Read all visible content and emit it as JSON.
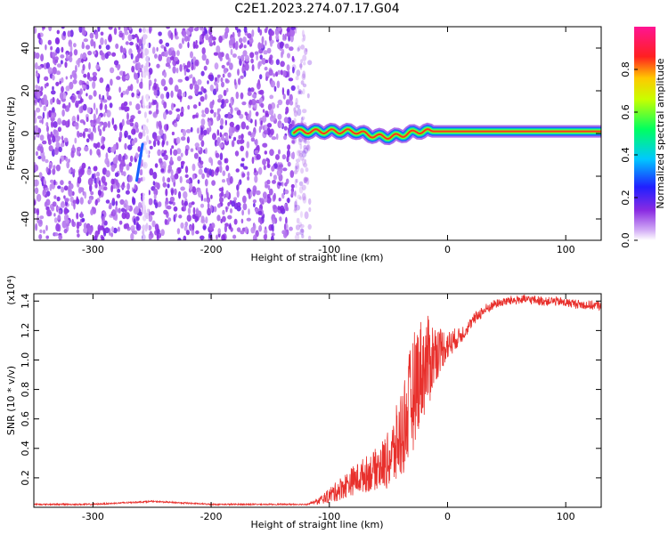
{
  "title": "C2E1.2023.274.07.17.G04",
  "chart_data": [
    {
      "type": "heatmap",
      "xlabel": "Height of straight line (km)",
      "ylabel": "Frequency (Hz)",
      "xlim": [
        -350,
        130
      ],
      "ylim": [
        -50,
        50
      ],
      "xticks": [
        -300,
        -200,
        -100,
        0,
        100
      ],
      "yticks": [
        -40,
        -20,
        0,
        20,
        40
      ],
      "colorbar": {
        "label": "Normalized spectral amplitude",
        "ticks": [
          0.0,
          0.2,
          0.4,
          0.6,
          0.8
        ],
        "range": [
          0,
          1
        ],
        "colormap": "rainbow (purple-blue-cyan-green-yellow-red-magenta)"
      },
      "regions": [
        {
          "name": "noise",
          "x_range": [
            -350,
            -130
          ],
          "y_range": [
            -50,
            50
          ],
          "amplitude": 0.1
        },
        {
          "name": "signal-line",
          "x_range": [
            -130,
            130
          ],
          "frequency_hz": 1,
          "amplitude": 0.85
        }
      ],
      "features": [
        {
          "name": "streak",
          "x": [
            -263,
            -258
          ],
          "y": [
            -22,
            -5
          ],
          "amplitude": 0.3
        }
      ]
    },
    {
      "type": "line",
      "xlabel": "Height of straight line (km)",
      "ylabel": "SNR (10 * v/v)",
      "y_multiplier": "(x10⁴)",
      "xlim": [
        -350,
        130
      ],
      "ylim": [
        0,
        1.45
      ],
      "xticks": [
        -300,
        -200,
        -100,
        0,
        100
      ],
      "yticks": [
        0.2,
        0.4,
        0.6,
        0.8,
        1.0,
        1.2,
        1.4
      ],
      "color": "#e8302c",
      "series": [
        {
          "x": [
            -350,
            -300,
            -250,
            -200,
            -150,
            -120,
            -110,
            -100,
            -90,
            -80,
            -70,
            -60,
            -50,
            -45,
            -40,
            -35,
            -30,
            -25,
            -20,
            -15,
            -10,
            -5,
            0,
            5,
            10,
            15,
            20,
            25,
            30,
            40,
            50,
            60,
            70,
            80,
            90,
            100,
            110,
            120,
            130
          ],
          "y": [
            0.02,
            0.02,
            0.04,
            0.02,
            0.02,
            0.02,
            0.04,
            0.08,
            0.13,
            0.18,
            0.22,
            0.26,
            0.32,
            0.38,
            0.48,
            0.6,
            0.75,
            0.9,
            0.95,
            1.0,
            1.05,
            1.08,
            1.1,
            1.13,
            1.16,
            1.2,
            1.25,
            1.3,
            1.33,
            1.38,
            1.4,
            1.41,
            1.41,
            1.4,
            1.4,
            1.39,
            1.38,
            1.37,
            1.37
          ],
          "spread": [
            0,
            0,
            0,
            0,
            0,
            0,
            0.02,
            0.05,
            0.08,
            0.1,
            0.12,
            0.14,
            0.2,
            0.25,
            0.32,
            0.35,
            0.4,
            0.38,
            0.35,
            0.3,
            0.2,
            0.15,
            0.1,
            0.08,
            0.06,
            0.05,
            0.04,
            0.04,
            0.04,
            0.03,
            0.03,
            0.03,
            0.03,
            0.03,
            0.03,
            0.03,
            0.03,
            0.03,
            0.03
          ]
        }
      ]
    }
  ]
}
